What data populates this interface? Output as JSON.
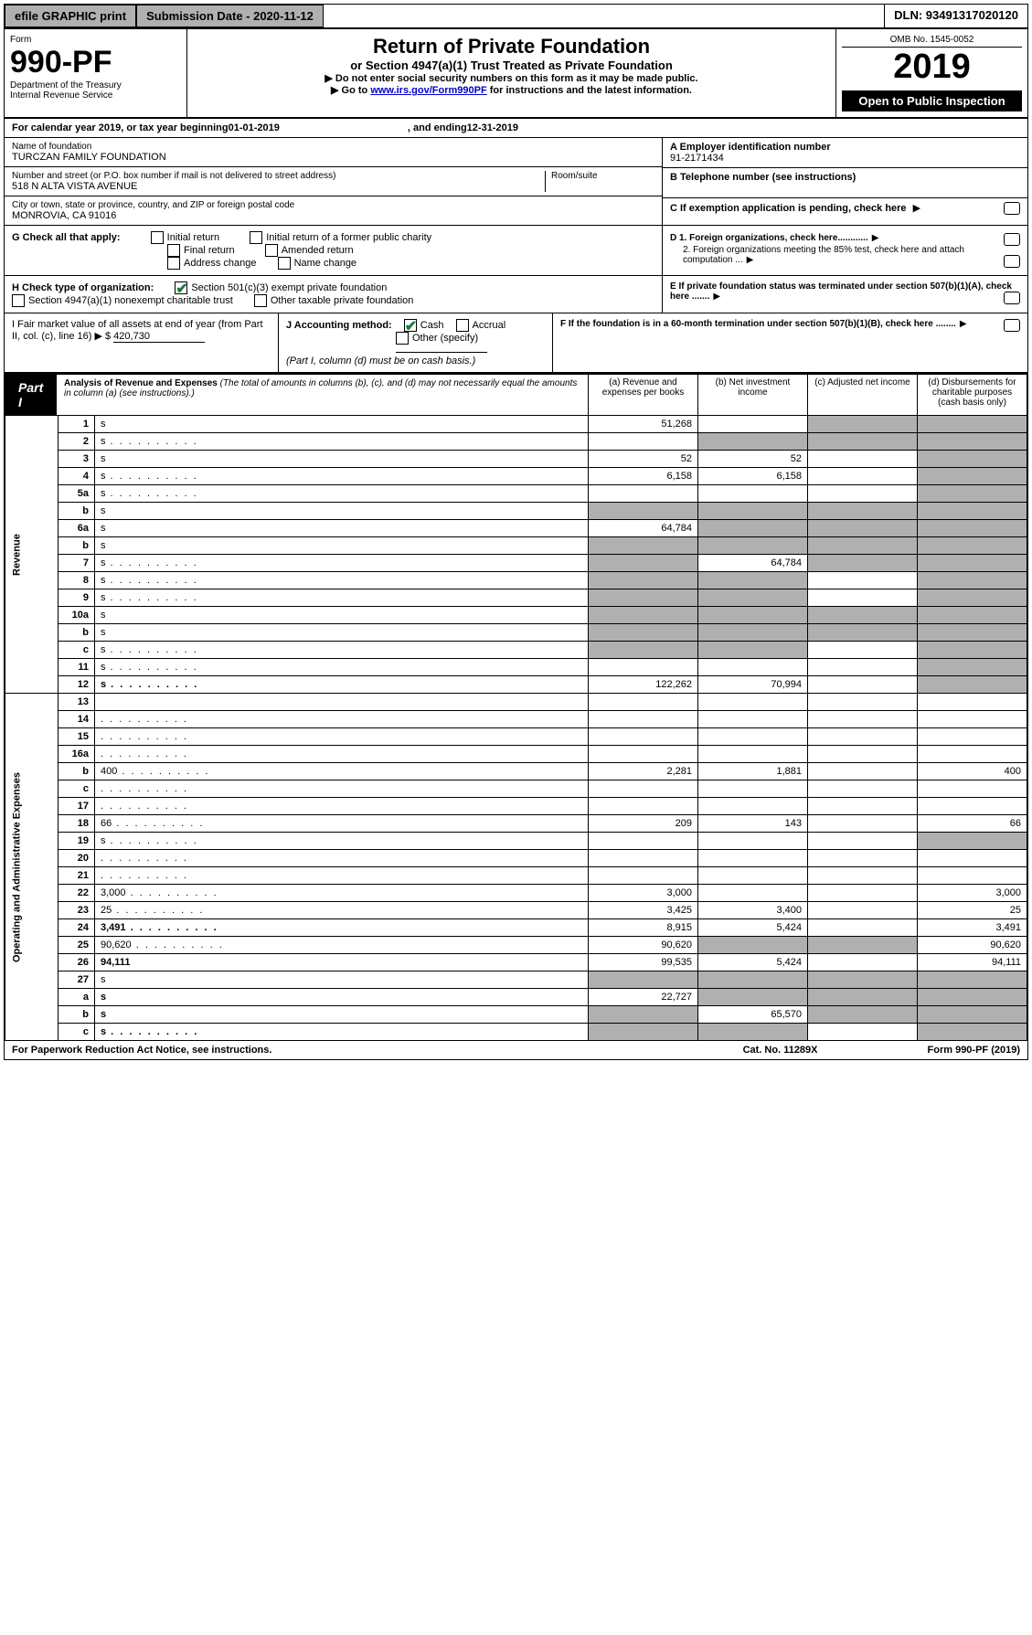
{
  "topbar": {
    "efile": "efile GRAPHIC print",
    "submission_label": "Submission Date - 2020-11-12",
    "dln": "DLN: 93491317020120"
  },
  "header": {
    "form_word": "Form",
    "form_no": "990-PF",
    "dept": "Department of the Treasury",
    "irs": "Internal Revenue Service",
    "title": "Return of Private Foundation",
    "subtitle": "or Section 4947(a)(1) Trust Treated as Private Foundation",
    "instr1": "▶ Do not enter social security numbers on this form as it may be made public.",
    "instr2_pre": "▶ Go to ",
    "instr2_link": "www.irs.gov/Form990PF",
    "instr2_post": " for instructions and the latest information.",
    "omb": "OMB No. 1545-0052",
    "year": "2019",
    "open": "Open to Public Inspection"
  },
  "calendar": {
    "text_pre": "For calendar year 2019, or tax year beginning ",
    "begin": "01-01-2019",
    "mid": " , and ending ",
    "end": "12-31-2019"
  },
  "identity": {
    "name_lbl": "Name of foundation",
    "name": "TURCZAN FAMILY FOUNDATION",
    "addr_lbl": "Number and street (or P.O. box number if mail is not delivered to street address)",
    "addr": "518 N ALTA VISTA AVENUE",
    "room_lbl": "Room/suite",
    "city_lbl": "City or town, state or province, country, and ZIP or foreign postal code",
    "city": "MONROVIA, CA  91016",
    "a_lbl": "A Employer identification number",
    "a_val": "91-2171434",
    "b_lbl": "B Telephone number (see instructions)",
    "c_lbl": "C If exemption application is pending, check here",
    "d1": "D 1. Foreign organizations, check here............",
    "d2": "2. Foreign organizations meeting the 85% test, check here and attach computation ...",
    "e_lbl": "E  If private foundation status was terminated under section 507(b)(1)(A), check here .......",
    "f_lbl": "F  If the foundation is in a 60-month termination under section 507(b)(1)(B), check here ........"
  },
  "g": {
    "label": "G Check all that apply:",
    "initial": "Initial return",
    "initial_former": "Initial return of a former public charity",
    "final": "Final return",
    "amended": "Amended return",
    "address": "Address change",
    "name": "Name change"
  },
  "h": {
    "label": "H Check type of organization:",
    "s501": "Section 501(c)(3) exempt private foundation",
    "s4947": "Section 4947(a)(1) nonexempt charitable trust",
    "other": "Other taxable private foundation"
  },
  "i": {
    "label": "I Fair market value of all assets at end of year (from Part II, col. (c), line 16) ▶ $",
    "value": "420,730"
  },
  "j": {
    "label": "J Accounting method:",
    "cash": "Cash",
    "accrual": "Accrual",
    "other": "Other (specify)",
    "note": "(Part I, column (d) must be on cash basis.)"
  },
  "part1": {
    "label": "Part I",
    "title": "Analysis of Revenue and Expenses",
    "note": "(The total of amounts in columns (b), (c), and (d) may not necessarily equal the amounts in column (a) (see instructions).)",
    "col_a": "(a)   Revenue and expenses per books",
    "col_b": "(b)  Net investment income",
    "col_c": "(c)  Adjusted net income",
    "col_d": "(d)  Disbursements for charitable purposes (cash basis only)"
  },
  "sections": {
    "revenue": "Revenue",
    "expenses": "Operating and Administrative Expenses"
  },
  "rows": [
    {
      "n": "1",
      "d": "s",
      "a": "51,268",
      "b": "",
      "c": "s"
    },
    {
      "n": "2",
      "d": "s",
      "a": "",
      "b": "s",
      "c": "s",
      "dots": true
    },
    {
      "n": "3",
      "d": "s",
      "a": "52",
      "b": "52",
      "c": ""
    },
    {
      "n": "4",
      "d": "s",
      "a": "6,158",
      "b": "6,158",
      "c": "",
      "dots": true
    },
    {
      "n": "5a",
      "d": "s",
      "a": "",
      "b": "",
      "c": "",
      "dots": true
    },
    {
      "n": "b",
      "d": "s",
      "a": "s",
      "b": "s",
      "c": "s"
    },
    {
      "n": "6a",
      "d": "s",
      "a": "64,784",
      "b": "s",
      "c": "s"
    },
    {
      "n": "b",
      "d": "s",
      "a": "s",
      "b": "s",
      "c": "s"
    },
    {
      "n": "7",
      "d": "s",
      "a": "s",
      "b": "64,784",
      "c": "s",
      "dots": true
    },
    {
      "n": "8",
      "d": "s",
      "a": "s",
      "b": "s",
      "c": "",
      "dots": true
    },
    {
      "n": "9",
      "d": "s",
      "a": "s",
      "b": "s",
      "c": "",
      "dots": true
    },
    {
      "n": "10a",
      "d": "s",
      "a": "s",
      "b": "s",
      "c": "s"
    },
    {
      "n": "b",
      "d": "s",
      "a": "s",
      "b": "s",
      "c": "s"
    },
    {
      "n": "c",
      "d": "s",
      "a": "s",
      "b": "s",
      "c": "",
      "dots": true
    },
    {
      "n": "11",
      "d": "s",
      "a": "",
      "b": "",
      "c": "",
      "dots": true
    },
    {
      "n": "12",
      "d": "s",
      "a": "122,262",
      "b": "70,994",
      "c": "",
      "bold": true,
      "dots": true
    },
    {
      "n": "13",
      "d": "",
      "a": "",
      "b": "",
      "c": ""
    },
    {
      "n": "14",
      "d": "",
      "a": "",
      "b": "",
      "c": "",
      "dots": true
    },
    {
      "n": "15",
      "d": "",
      "a": "",
      "b": "",
      "c": "",
      "dots": true
    },
    {
      "n": "16a",
      "d": "",
      "a": "",
      "b": "",
      "c": "",
      "dots": true
    },
    {
      "n": "b",
      "d": "400",
      "a": "2,281",
      "b": "1,881",
      "c": "",
      "dots": true
    },
    {
      "n": "c",
      "d": "",
      "a": "",
      "b": "",
      "c": "",
      "dots": true
    },
    {
      "n": "17",
      "d": "",
      "a": "",
      "b": "",
      "c": "",
      "dots": true
    },
    {
      "n": "18",
      "d": "66",
      "a": "209",
      "b": "143",
      "c": "",
      "dots": true
    },
    {
      "n": "19",
      "d": "s",
      "a": "",
      "b": "",
      "c": "",
      "dots": true
    },
    {
      "n": "20",
      "d": "",
      "a": "",
      "b": "",
      "c": "",
      "dots": true
    },
    {
      "n": "21",
      "d": "",
      "a": "",
      "b": "",
      "c": "",
      "dots": true
    },
    {
      "n": "22",
      "d": "3,000",
      "a": "3,000",
      "b": "",
      "c": "",
      "dots": true
    },
    {
      "n": "23",
      "d": "25",
      "a": "3,425",
      "b": "3,400",
      "c": "",
      "dots": true
    },
    {
      "n": "24",
      "d": "3,491",
      "a": "8,915",
      "b": "5,424",
      "c": "",
      "bold": true,
      "dots": true
    },
    {
      "n": "25",
      "d": "90,620",
      "a": "90,620",
      "b": "s",
      "c": "s",
      "dots": true
    },
    {
      "n": "26",
      "d": "94,111",
      "a": "99,535",
      "b": "5,424",
      "c": "",
      "bold": true
    },
    {
      "n": "27",
      "d": "s",
      "a": "s",
      "b": "s",
      "c": "s"
    },
    {
      "n": "a",
      "d": "s",
      "a": "22,727",
      "b": "s",
      "c": "s",
      "bold": true
    },
    {
      "n": "b",
      "d": "s",
      "a": "s",
      "b": "65,570",
      "c": "s",
      "bold": true
    },
    {
      "n": "c",
      "d": "s",
      "a": "s",
      "b": "s",
      "c": "",
      "bold": true,
      "dots": true
    }
  ],
  "footer": {
    "left": "For Paperwork Reduction Act Notice, see instructions.",
    "center": "Cat. No. 11289X",
    "right": "Form 990-PF (2019)"
  }
}
